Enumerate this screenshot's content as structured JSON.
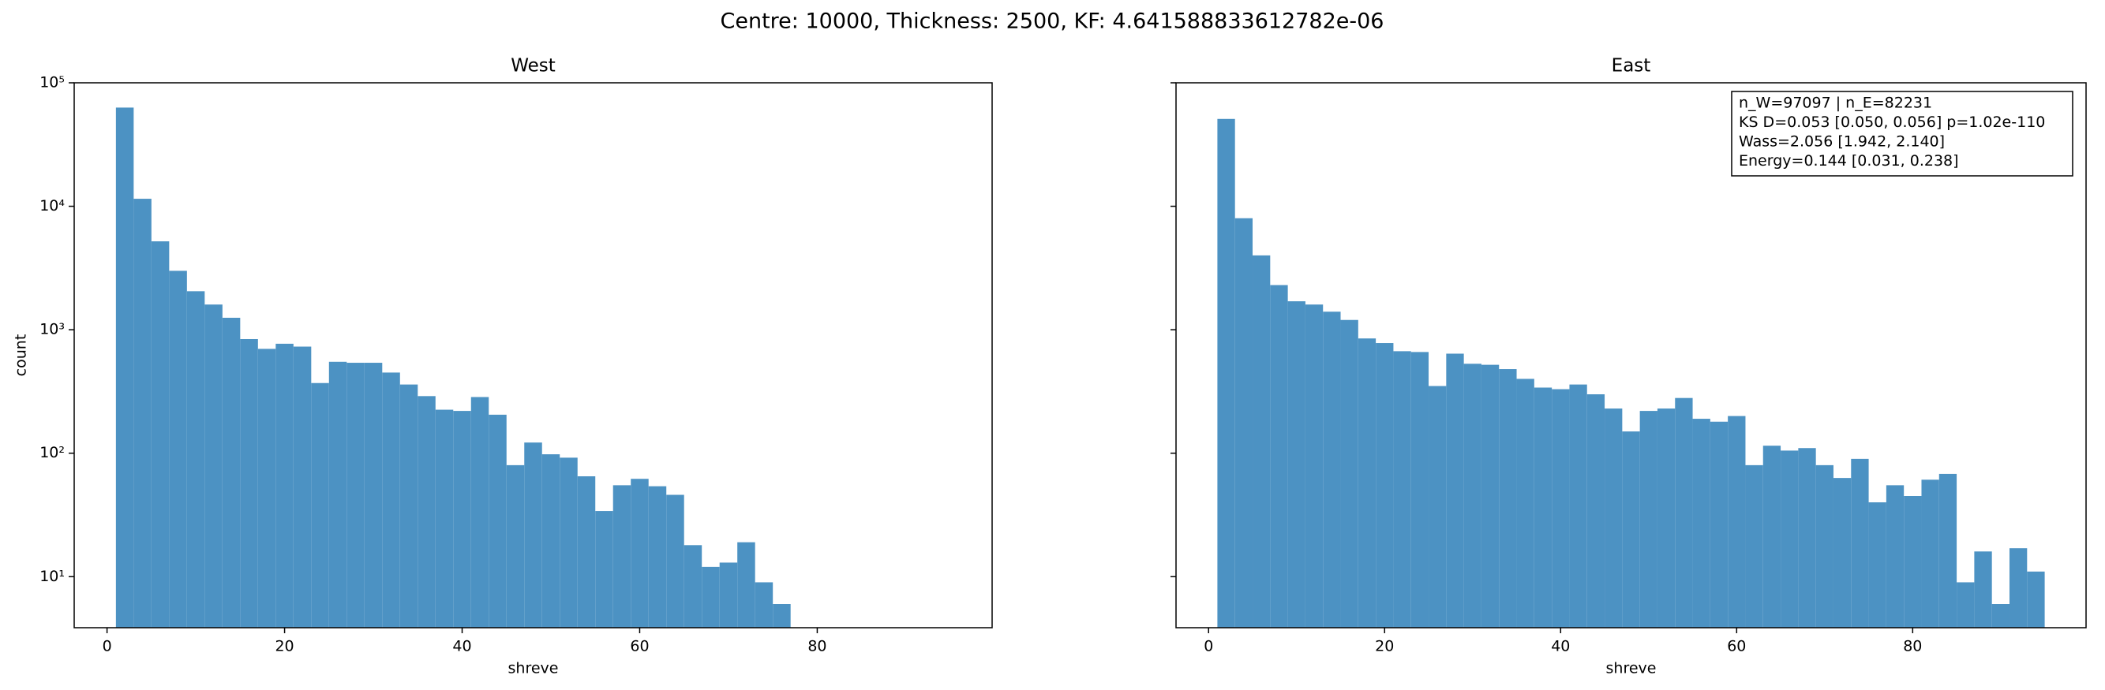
{
  "title": "Centre: 10000, Thickness: 2500, KF: 4.641588833612782e-06",
  "chart_data": [
    {
      "type": "histogram",
      "title": "West",
      "xlabel": "shreve",
      "ylabel": "count",
      "bins": [
        1,
        3,
        5,
        7,
        9,
        11,
        13,
        15,
        17,
        19,
        21,
        23,
        25,
        27,
        29,
        31,
        33,
        35,
        37,
        39,
        41,
        43,
        45,
        47,
        49,
        51,
        53,
        55,
        57,
        59,
        61,
        63,
        65,
        67,
        69,
        71,
        73,
        75,
        77,
        79,
        81,
        83,
        85,
        87,
        89,
        91,
        93,
        95
      ],
      "values": [
        63000,
        11500,
        5200,
        3000,
        2050,
        1600,
        1250,
        840,
        700,
        770,
        730,
        370,
        550,
        540,
        540,
        450,
        360,
        290,
        225,
        220,
        285,
        205,
        80,
        122,
        98,
        92,
        65,
        34,
        55,
        62,
        54,
        46,
        18,
        12,
        13,
        19,
        9,
        6,
        0,
        0,
        0,
        0,
        0,
        0,
        0,
        0,
        0
      ],
      "color": "#4c92c3",
      "log_y": true,
      "show_ytick_labels": true,
      "xlim": [
        -3.7,
        99.7
      ],
      "ylim": [
        3.86,
        100000
      ],
      "xticks": [
        0,
        20,
        40,
        60,
        80
      ],
      "yticks": [
        {
          "value": 10,
          "label": "10¹"
        },
        {
          "value": 100,
          "label": "10²"
        },
        {
          "value": 1000,
          "label": "10³"
        },
        {
          "value": 10000,
          "label": "10⁴"
        },
        {
          "value": 100000,
          "label": "10⁵"
        }
      ]
    },
    {
      "type": "histogram",
      "title": "East",
      "xlabel": "shreve",
      "bins": [
        1,
        3,
        5,
        7,
        9,
        11,
        13,
        15,
        17,
        19,
        21,
        23,
        25,
        27,
        29,
        31,
        33,
        35,
        37,
        39,
        41,
        43,
        45,
        47,
        49,
        51,
        53,
        55,
        57,
        59,
        61,
        63,
        65,
        67,
        69,
        71,
        73,
        75,
        77,
        79,
        81,
        83,
        85,
        87,
        89,
        91,
        93,
        95
      ],
      "values": [
        51000,
        8000,
        4000,
        2300,
        1700,
        1600,
        1400,
        1200,
        850,
        780,
        670,
        660,
        350,
        640,
        530,
        520,
        480,
        400,
        340,
        330,
        360,
        300,
        230,
        150,
        220,
        230,
        280,
        190,
        180,
        200,
        80,
        115,
        105,
        110,
        80,
        63,
        90,
        40,
        55,
        45,
        61,
        68,
        9,
        16,
        6,
        17,
        11
      ],
      "color": "#4c92c3",
      "log_y": true,
      "show_ytick_labels": false,
      "xlim": [
        -3.7,
        99.7
      ],
      "ylim": [
        3.86,
        100000
      ],
      "xticks": [
        0,
        20,
        40,
        60,
        80
      ],
      "yticks": [
        10,
        100,
        1000,
        10000,
        100000
      ],
      "annotation": [
        "n_W=97097 | n_E=82231",
        "KS D=0.053 [0.050, 0.056]  p=1.02e-110",
        "Wass=2.056 [1.942, 2.140]",
        "Energy=0.144 [0.031, 0.238]"
      ]
    }
  ]
}
